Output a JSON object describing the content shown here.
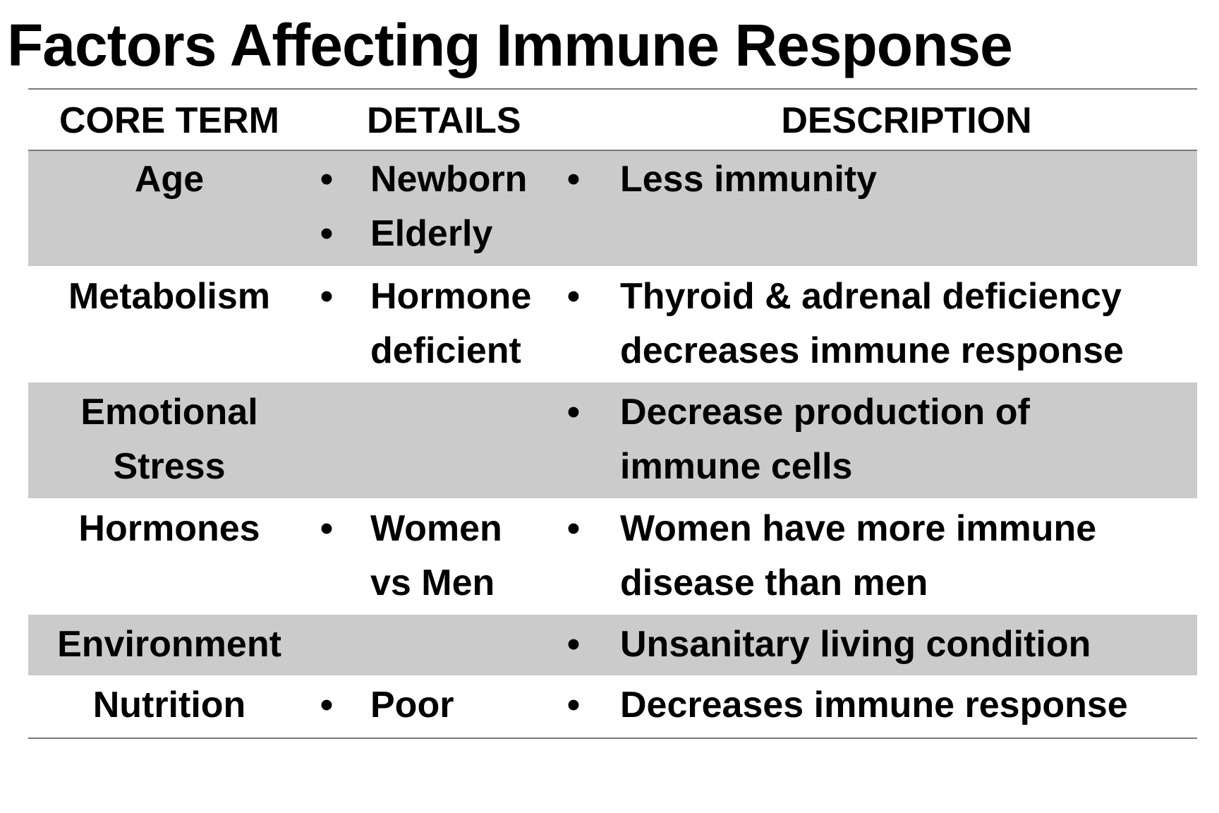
{
  "title": "Factors Affecting Immune Response",
  "table": {
    "headers": {
      "core_term": "CORE TERM",
      "details": "DETAILS",
      "description": "DESCRIPTION"
    },
    "bullet": "•",
    "rows": [
      {
        "term": [
          "Age"
        ],
        "details": [
          "Newborn",
          "Elderly"
        ],
        "description": [
          "Less immunity"
        ]
      },
      {
        "term": [
          "Metabolism"
        ],
        "details": [
          "Hormone",
          "deficient"
        ],
        "description": [
          "Thyroid & adrenal deficiency",
          "decreases immune response"
        ]
      },
      {
        "term": [
          "Emotional",
          "Stress"
        ],
        "details": [],
        "description": [
          "Decrease production of",
          "immune cells"
        ]
      },
      {
        "term": [
          "Hormones"
        ],
        "details": [
          "Women",
          "vs Men"
        ],
        "description": [
          "Women have more immune",
          "disease than men"
        ]
      },
      {
        "term": [
          "Environment"
        ],
        "details": [],
        "description": [
          "Unsanitary living condition"
        ]
      },
      {
        "term": [
          "Nutrition"
        ],
        "details": [
          "Poor"
        ],
        "description": [
          "Decreases immune response"
        ]
      }
    ]
  }
}
